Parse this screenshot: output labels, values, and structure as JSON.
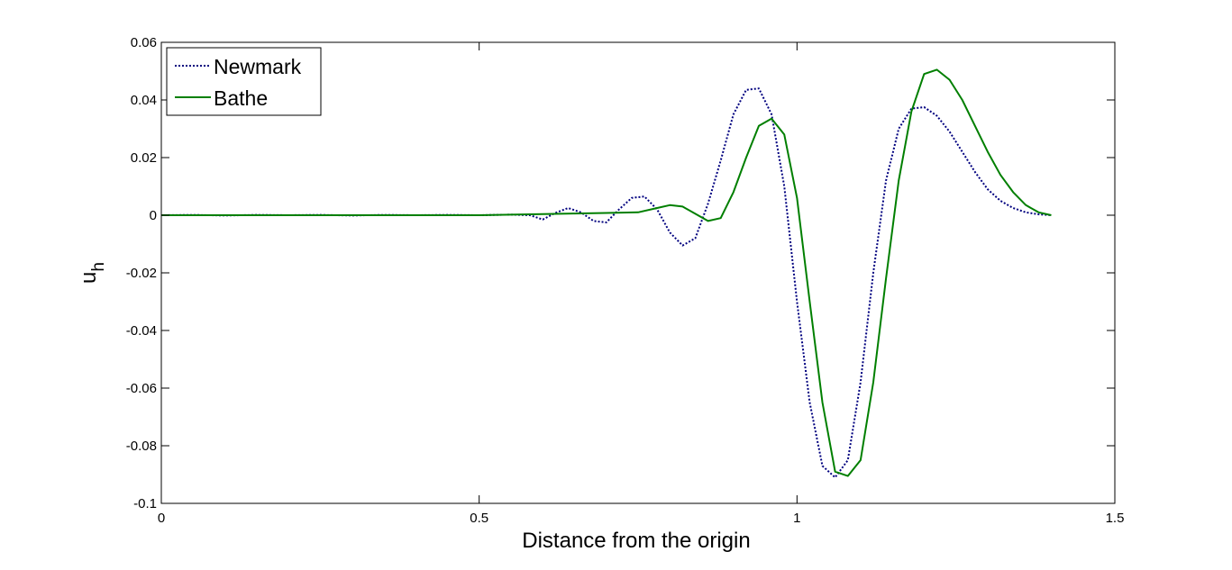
{
  "chart_data": {
    "type": "line",
    "title": "",
    "xlabel": "Distance from the origin",
    "ylabel": "u",
    "ylabel_subscript": "h",
    "xlim": [
      0,
      1.5
    ],
    "ylim": [
      -0.1,
      0.06
    ],
    "xticks": [
      0,
      0.5,
      1,
      1.5
    ],
    "xtick_labels": [
      "0",
      "0.5",
      "1",
      "1.5"
    ],
    "yticks": [
      -0.1,
      -0.08,
      -0.06,
      -0.04,
      -0.02,
      0,
      0.02,
      0.04,
      0.06
    ],
    "ytick_labels": [
      "-0.1",
      "-0.08",
      "-0.06",
      "-0.04",
      "-0.02",
      "0",
      "0.02",
      "0.04",
      "0.06"
    ],
    "grid": false,
    "legend_position": "top-left",
    "series": [
      {
        "name": "Newmark",
        "color": "#00007f",
        "style": "dotted",
        "x": [
          0,
          0.05,
          0.1,
          0.15,
          0.2,
          0.25,
          0.3,
          0.35,
          0.4,
          0.45,
          0.5,
          0.55,
          0.58,
          0.6,
          0.62,
          0.64,
          0.66,
          0.68,
          0.7,
          0.72,
          0.74,
          0.76,
          0.78,
          0.8,
          0.82,
          0.84,
          0.86,
          0.88,
          0.9,
          0.92,
          0.94,
          0.96,
          0.98,
          1.0,
          1.02,
          1.04,
          1.06,
          1.08,
          1.1,
          1.12,
          1.14,
          1.16,
          1.18,
          1.2,
          1.22,
          1.24,
          1.26,
          1.28,
          1.3,
          1.32,
          1.34,
          1.36,
          1.38,
          1.4
        ],
        "y": [
          0,
          0.0001,
          -0.0001,
          0.0001,
          0,
          0.0001,
          -0.0001,
          0.0001,
          0,
          0.0001,
          0,
          0.0002,
          0,
          -0.0015,
          0.0008,
          0.0025,
          0.001,
          -0.002,
          -0.0025,
          0.002,
          0.006,
          0.0065,
          0.002,
          -0.006,
          -0.0105,
          -0.008,
          0.004,
          0.019,
          0.035,
          0.0435,
          0.044,
          0.035,
          0.01,
          -0.03,
          -0.065,
          -0.087,
          -0.091,
          -0.085,
          -0.058,
          -0.02,
          0.012,
          0.03,
          0.037,
          0.0375,
          0.0345,
          0.029,
          0.022,
          0.015,
          0.009,
          0.005,
          0.0025,
          0.001,
          0.0003,
          0
        ]
      },
      {
        "name": "Bathe",
        "color": "#007f00",
        "style": "solid",
        "x": [
          0,
          0.1,
          0.2,
          0.3,
          0.4,
          0.5,
          0.55,
          0.6,
          0.65,
          0.7,
          0.75,
          0.78,
          0.8,
          0.82,
          0.84,
          0.86,
          0.88,
          0.9,
          0.92,
          0.94,
          0.96,
          0.98,
          1.0,
          1.02,
          1.04,
          1.06,
          1.08,
          1.1,
          1.12,
          1.14,
          1.16,
          1.18,
          1.2,
          1.22,
          1.24,
          1.26,
          1.28,
          1.3,
          1.32,
          1.34,
          1.36,
          1.38,
          1.4
        ],
        "y": [
          0,
          0,
          0,
          0,
          0,
          0,
          0.0002,
          0.0004,
          0.0006,
          0.0008,
          0.001,
          0.0025,
          0.0035,
          0.003,
          0.0005,
          -0.002,
          -0.001,
          0.008,
          0.02,
          0.031,
          0.0335,
          0.028,
          0.006,
          -0.03,
          -0.065,
          -0.089,
          -0.0905,
          -0.085,
          -0.058,
          -0.022,
          0.012,
          0.036,
          0.049,
          0.0505,
          0.047,
          0.04,
          0.031,
          0.022,
          0.014,
          0.008,
          0.0035,
          0.001,
          0
        ]
      }
    ]
  }
}
